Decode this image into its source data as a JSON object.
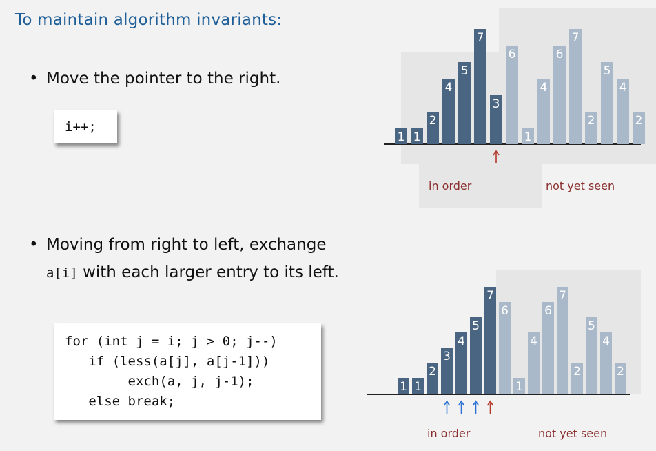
{
  "heading": "To maintain algorithm invariants:",
  "bullet1": {
    "text": "Move the pointer to the right."
  },
  "code1": "i++;",
  "bullet2": {
    "line1": "Moving from right to left, exchange",
    "line2_code": "a[i]",
    "line2_rest": " with each larger entry to its left."
  },
  "code2": [
    "for (int j = i; j > 0; j--)",
    "   if (less(a[j], a[j-1]))",
    "        exch(a, j, j-1);",
    "   else break;"
  ],
  "labels": {
    "in_order": "in order",
    "not_yet_seen": "not yet seen"
  },
  "colors": {
    "heading": "#1f5f99",
    "dark_bar": "#4a6582",
    "light_bar": "#a9b9c9",
    "label": "#8b2e2e",
    "blue_arrow": "#2a6fd6",
    "red_arrow": "#b23a2a"
  },
  "diagram_top": {
    "values": [
      1,
      1,
      2,
      4,
      5,
      7,
      3,
      6,
      1,
      4,
      6,
      7,
      2,
      5,
      4,
      2
    ],
    "sorted_count": 6,
    "current_index": 6,
    "arrows": [
      {
        "index": 6,
        "color": "red"
      }
    ]
  },
  "diagram_bottom": {
    "values": [
      1,
      1,
      2,
      3,
      4,
      5,
      7,
      6,
      1,
      4,
      6,
      7,
      2,
      5,
      4,
      2
    ],
    "sorted_count": 7,
    "arrows": [
      {
        "index": 3,
        "color": "blue"
      },
      {
        "index": 4,
        "color": "blue"
      },
      {
        "index": 5,
        "color": "blue"
      },
      {
        "index": 6,
        "color": "red"
      }
    ]
  }
}
